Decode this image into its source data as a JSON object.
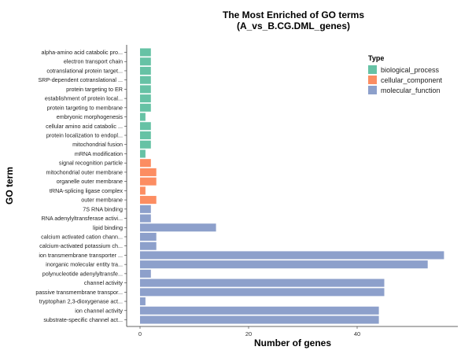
{
  "chart_data": {
    "type": "bar",
    "orientation": "horizontal",
    "title": "The Most Enriched of GO terms",
    "subtitle": "(A_vs_B.CG.DML_genes)",
    "xlabel": "Number of genes",
    "ylabel": "GO term",
    "xlim": [
      0,
      57
    ],
    "x_ticks": [
      0,
      20,
      40
    ],
    "grid": false,
    "legend": {
      "title": "Type",
      "position": "top-right",
      "entries": [
        {
          "name": "biological_process",
          "color": "#66c2a5"
        },
        {
          "name": "cellular_component",
          "color": "#fc8d62"
        },
        {
          "name": "molecular_function",
          "color": "#8da0cb"
        }
      ]
    },
    "categories": [
      "alpha-amino acid catabolic pro...",
      "electron transport chain",
      "cotranslational protein target...",
      "SRP-dependent cotranslational ...",
      "protein targeting to ER",
      "establishment of protein local...",
      "protein targeting to membrane",
      "embryonic morphogenesis",
      "cellular amino acid catabolic ...",
      "protein localization to endopl...",
      "mitochondrial fusion",
      "mRNA modification",
      "signal recognition particle",
      "mitochondrial outer membrane",
      "organelle outer membrane",
      "tRNA-splicing ligase complex",
      "outer membrane",
      "7S RNA binding",
      "RNA adenylyltransferase activi...",
      "lipid binding",
      "calcium activated cation chann...",
      "calcium-activated potassium ch...",
      "ion transmembrane transporter ...",
      "inorganic molecular entity tra...",
      "polynucleotide adenylyltransfe...",
      "channel activity",
      "passive transmembrane transpor...",
      "tryptophan 2,3-dioxygenase act...",
      "ion channel activity",
      "substrate-specific channel act..."
    ],
    "values": [
      2,
      2,
      2,
      2,
      2,
      2,
      2,
      1,
      2,
      2,
      2,
      1,
      2,
      3,
      3,
      1,
      3,
      2,
      2,
      14,
      3,
      3,
      56,
      53,
      2,
      45,
      45,
      1,
      44,
      44
    ],
    "types": [
      "biological_process",
      "biological_process",
      "biological_process",
      "biological_process",
      "biological_process",
      "biological_process",
      "biological_process",
      "biological_process",
      "biological_process",
      "biological_process",
      "biological_process",
      "biological_process",
      "cellular_component",
      "cellular_component",
      "cellular_component",
      "cellular_component",
      "cellular_component",
      "molecular_function",
      "molecular_function",
      "molecular_function",
      "molecular_function",
      "molecular_function",
      "molecular_function",
      "molecular_function",
      "molecular_function",
      "molecular_function",
      "molecular_function",
      "molecular_function",
      "molecular_function",
      "molecular_function"
    ]
  }
}
